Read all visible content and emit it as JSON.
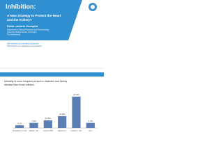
{
  "slide1": {
    "title": "Inhibition:",
    "subtitle_lines": [
      "A New Strategy to Protect the Heart",
      "and the Kidney?"
    ],
    "author": "Robin Lambers Heerspink",
    "affiliation_lines": [
      "Department of Clinical Pharmacy and Pharmacology",
      "University Medical Center Groningen",
      "The Netherlands"
    ],
    "note_lines": [
      "Slide courtesy and consultancy disclosures",
      "Nephrologists and collaborators acknowledged"
    ]
  },
  "slide2": {
    "heading_lines": [
      "Mortality is more frequent present in diabetes and kidney",
      "disease than those without."
    ],
    "chart_data": {
      "type": "bar",
      "categories": [
        "No diabetes, no CKD",
        "Diabetes only",
        "Impaired GFR",
        "Albuminuria",
        "Diabetes + CKD",
        "Other"
      ],
      "values": [
        4.1,
        7.7,
        11.5,
        17.8,
        47.0,
        7.7
      ],
      "value_labels": [
        "4.1%",
        "7.7%",
        "11.5%",
        "17.8%",
        "47.0%",
        "7.7%"
      ],
      "color": "#5b7fb5",
      "ylim": [
        0,
        50
      ]
    }
  }
}
